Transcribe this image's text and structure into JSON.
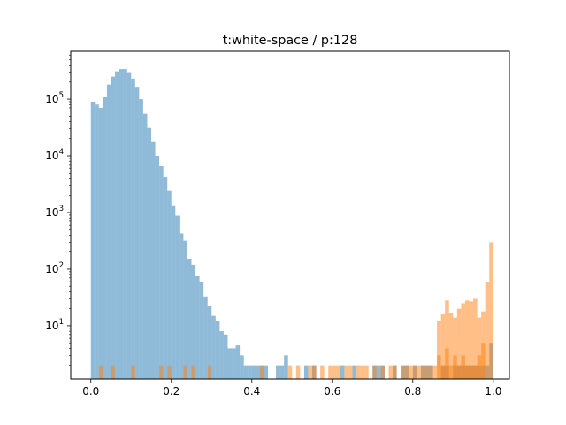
{
  "chart_data": {
    "type": "bar",
    "title": "t:white-space / p:128",
    "xlabel": "",
    "ylabel": "",
    "yscale": "log",
    "xlim": [
      -0.05,
      1.04
    ],
    "ylim": [
      1.15,
      700000
    ],
    "grid": false,
    "legend": "none",
    "bin_width": 0.01,
    "x_ticks": [
      0.0,
      0.2,
      0.4,
      0.6,
      0.8,
      1.0
    ],
    "x_tick_labels": [
      "0.0",
      "0.2",
      "0.4",
      "0.6",
      "0.8",
      "1.0"
    ],
    "y_ticks": [
      10,
      100,
      1000,
      10000,
      100000
    ],
    "y_tick_base": "10",
    "y_tick_exponents": [
      "1",
      "2",
      "3",
      "4",
      "5"
    ],
    "series": [
      {
        "color": "#1f77b4",
        "alpha": 0.5,
        "bins": [
          [
            0.0,
            90000
          ],
          [
            0.01,
            80000
          ],
          [
            0.02,
            70000
          ],
          [
            0.03,
            110000
          ],
          [
            0.04,
            180000
          ],
          [
            0.05,
            250000
          ],
          [
            0.06,
            310000
          ],
          [
            0.07,
            340000
          ],
          [
            0.08,
            340000
          ],
          [
            0.09,
            300000
          ],
          [
            0.1,
            230000
          ],
          [
            0.11,
            165000
          ],
          [
            0.12,
            100000
          ],
          [
            0.13,
            55000
          ],
          [
            0.14,
            32000
          ],
          [
            0.15,
            18000
          ],
          [
            0.16,
            10000
          ],
          [
            0.17,
            6500
          ],
          [
            0.18,
            4200
          ],
          [
            0.19,
            2400
          ],
          [
            0.2,
            1300
          ],
          [
            0.21,
            880
          ],
          [
            0.22,
            430
          ],
          [
            0.23,
            320
          ],
          [
            0.24,
            150
          ],
          [
            0.25,
            120
          ],
          [
            0.26,
            75
          ],
          [
            0.27,
            60
          ],
          [
            0.28,
            33
          ],
          [
            0.29,
            22
          ],
          [
            0.3,
            15
          ],
          [
            0.31,
            12
          ],
          [
            0.32,
            8
          ],
          [
            0.33,
            7
          ],
          [
            0.34,
            4
          ],
          [
            0.35,
            4
          ],
          [
            0.36,
            4.5
          ],
          [
            0.37,
            3
          ],
          [
            0.38,
            2
          ],
          [
            0.39,
            2
          ],
          [
            0.4,
            2
          ],
          [
            0.41,
            2
          ],
          [
            0.42,
            2
          ],
          [
            0.43,
            2
          ],
          [
            0.44,
            1
          ],
          [
            0.45,
            1
          ],
          [
            0.46,
            2
          ],
          [
            0.47,
            2
          ],
          [
            0.48,
            3
          ],
          [
            0.49,
            1
          ],
          [
            0.5,
            1
          ],
          [
            0.51,
            1
          ],
          [
            0.52,
            1
          ],
          [
            0.53,
            2
          ],
          [
            0.54,
            1
          ],
          [
            0.55,
            2
          ],
          [
            0.56,
            1
          ],
          [
            0.57,
            1
          ],
          [
            0.58,
            1
          ],
          [
            0.59,
            1
          ],
          [
            0.6,
            1
          ],
          [
            0.61,
            1
          ],
          [
            0.62,
            2
          ],
          [
            0.63,
            1
          ],
          [
            0.64,
            1
          ],
          [
            0.65,
            2
          ],
          [
            0.66,
            1
          ],
          [
            0.67,
            1
          ],
          [
            0.68,
            1
          ],
          [
            0.69,
            1
          ],
          [
            0.7,
            2
          ],
          [
            0.71,
            2
          ],
          [
            0.72,
            2
          ],
          [
            0.73,
            1
          ],
          [
            0.74,
            1
          ],
          [
            0.75,
            2
          ],
          [
            0.76,
            1
          ],
          [
            0.77,
            2
          ],
          [
            0.78,
            2
          ],
          [
            0.79,
            1
          ],
          [
            0.8,
            2
          ],
          [
            0.81,
            1
          ],
          [
            0.82,
            2
          ],
          [
            0.83,
            2
          ],
          [
            0.84,
            2
          ],
          [
            0.85,
            1
          ],
          [
            0.86,
            1
          ],
          [
            0.87,
            2
          ],
          [
            0.88,
            2
          ],
          [
            0.89,
            1
          ],
          [
            0.9,
            2
          ],
          [
            0.91,
            2
          ],
          [
            0.92,
            2
          ],
          [
            0.93,
            2
          ],
          [
            0.94,
            2
          ],
          [
            0.95,
            2
          ],
          [
            0.96,
            2
          ],
          [
            0.97,
            2
          ],
          [
            0.98,
            2
          ],
          [
            0.99,
            5
          ]
        ]
      },
      {
        "color": "#ff7f0e",
        "alpha": 0.5,
        "bins": [
          [
            0.02,
            2
          ],
          [
            0.05,
            2
          ],
          [
            0.1,
            2
          ],
          [
            0.17,
            2
          ],
          [
            0.19,
            2
          ],
          [
            0.23,
            2
          ],
          [
            0.25,
            2
          ],
          [
            0.29,
            2
          ],
          [
            0.42,
            2
          ],
          [
            0.49,
            2
          ],
          [
            0.51,
            2
          ],
          [
            0.54,
            2
          ],
          [
            0.55,
            2
          ],
          [
            0.57,
            2
          ],
          [
            0.59,
            2
          ],
          [
            0.6,
            2
          ],
          [
            0.61,
            2
          ],
          [
            0.63,
            2
          ],
          [
            0.64,
            2
          ],
          [
            0.66,
            2
          ],
          [
            0.67,
            2
          ],
          [
            0.68,
            2
          ],
          [
            0.7,
            2
          ],
          [
            0.72,
            2
          ],
          [
            0.74,
            2
          ],
          [
            0.75,
            2
          ],
          [
            0.77,
            2
          ],
          [
            0.78,
            2
          ],
          [
            0.79,
            2
          ],
          [
            0.8,
            2
          ],
          [
            0.81,
            2
          ],
          [
            0.82,
            2
          ],
          [
            0.83,
            2
          ],
          [
            0.84,
            2
          ],
          [
            0.85,
            2
          ],
          [
            0.86,
            3
          ],
          [
            0.87,
            2
          ],
          [
            0.88,
            4
          ],
          [
            0.89,
            2
          ],
          [
            0.9,
            3
          ],
          [
            0.91,
            2
          ],
          [
            0.92,
            3
          ],
          [
            0.93,
            2
          ],
          [
            0.94,
            2
          ],
          [
            0.95,
            2
          ],
          [
            0.96,
            3
          ],
          [
            0.97,
            5
          ],
          [
            0.98,
            60
          ],
          [
            0.99,
            300
          ],
          [
            0.86,
            12
          ],
          [
            0.87,
            16
          ],
          [
            0.88,
            28
          ],
          [
            0.89,
            17
          ],
          [
            0.9,
            14
          ],
          [
            0.91,
            20
          ],
          [
            0.92,
            25
          ],
          [
            0.93,
            28
          ],
          [
            0.94,
            27
          ],
          [
            0.95,
            30
          ],
          [
            0.96,
            14
          ],
          [
            0.97,
            18
          ]
        ]
      }
    ]
  }
}
